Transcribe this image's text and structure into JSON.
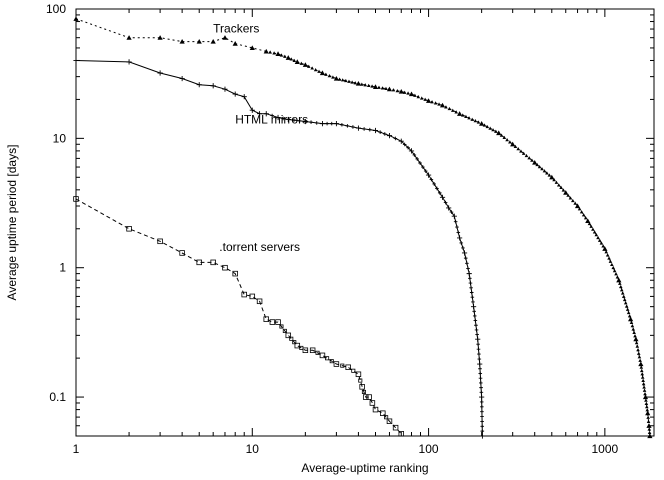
{
  "chart_data": {
    "type": "line",
    "title": "",
    "xlabel": "Average-uptime ranking",
    "ylabel": "Average uptime period [days]",
    "xscale": "log",
    "yscale": "log",
    "xlim": [
      1,
      1900
    ],
    "ylim": [
      0.05,
      100
    ],
    "x_ticks": [
      {
        "value": 1,
        "label": "1"
      },
      {
        "value": 10,
        "label": "10"
      },
      {
        "value": 100,
        "label": "100"
      },
      {
        "value": 1000,
        "label": "1000"
      }
    ],
    "y_ticks": [
      {
        "value": 0.1,
        "label": "0.1"
      },
      {
        "value": 1,
        "label": "1"
      },
      {
        "value": 10,
        "label": "10"
      },
      {
        "value": 100,
        "label": "100"
      }
    ],
    "grid": false,
    "legend": "none",
    "series": [
      {
        "name": "Trackers",
        "line_style": "dotted",
        "marker": "triangle",
        "color": "#000000",
        "x": [
          1,
          2,
          3,
          4,
          5,
          6,
          7,
          8,
          10,
          12,
          14,
          16,
          18,
          20,
          25,
          30,
          40,
          50,
          60,
          70,
          80,
          100,
          120,
          150,
          200,
          250,
          300,
          400,
          500,
          600,
          700,
          800,
          1000,
          1200,
          1400,
          1500,
          1600,
          1700,
          1750,
          1780,
          1800
        ],
        "values": [
          84,
          60,
          60,
          56,
          56,
          56,
          60,
          54,
          50,
          47,
          45,
          42,
          39,
          37,
          32,
          29,
          26.5,
          25,
          24,
          23,
          22,
          19.5,
          18,
          15.5,
          13,
          11,
          9,
          6.5,
          5,
          3.8,
          3.0,
          2.3,
          1.4,
          0.8,
          0.4,
          0.28,
          0.18,
          0.1,
          0.075,
          0.06,
          0.05
        ]
      },
      {
        "name": "HTML mirrors",
        "line_style": "solid",
        "marker": "plus",
        "color": "#000000",
        "x": [
          1,
          2,
          3,
          4,
          5,
          6,
          7,
          8,
          9,
          10,
          11,
          12,
          14,
          16,
          20,
          25,
          30,
          40,
          50,
          60,
          70,
          80,
          100,
          120,
          130,
          140,
          150,
          160,
          170,
          180,
          190,
          195,
          200,
          202
        ],
        "values": [
          40,
          39,
          32,
          29,
          26,
          25.5,
          24,
          22,
          21,
          16.5,
          15.5,
          15.5,
          14.5,
          14,
          13.5,
          13,
          13,
          12,
          11.5,
          10.5,
          9.5,
          8,
          5.2,
          3.5,
          2.9,
          2.5,
          1.7,
          1.3,
          0.9,
          0.5,
          0.28,
          0.18,
          0.1,
          0.05
        ]
      },
      {
        "name": ".torrent servers",
        "line_style": "dashed",
        "marker": "square",
        "color": "#000000",
        "x": [
          1,
          2,
          3,
          4,
          5,
          6,
          7,
          8,
          9,
          10,
          11,
          12,
          13,
          14,
          16,
          18,
          20,
          22,
          25,
          30,
          35,
          40,
          42,
          44,
          46,
          48,
          50,
          55,
          60,
          65,
          70
        ],
        "values": [
          3.4,
          2.0,
          1.6,
          1.3,
          1.1,
          1.1,
          1.0,
          0.9,
          0.62,
          0.6,
          0.55,
          0.4,
          0.38,
          0.38,
          0.3,
          0.25,
          0.23,
          0.23,
          0.21,
          0.18,
          0.17,
          0.15,
          0.12,
          0.1,
          0.1,
          0.09,
          0.08,
          0.075,
          0.065,
          0.058,
          0.052
        ]
      }
    ],
    "annotations": [
      {
        "text": "Trackers",
        "x": 6,
        "y": 66
      },
      {
        "text": "HTML mirrors",
        "x": 8,
        "y": 13
      },
      {
        "text": ".torrent servers",
        "x": 6.5,
        "y": 1.35
      }
    ]
  }
}
